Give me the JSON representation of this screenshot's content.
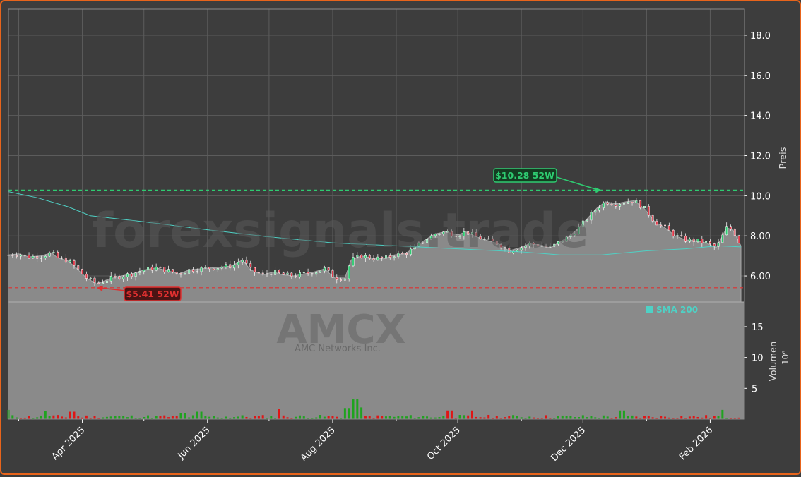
{
  "chart_data": {
    "type": "candlestick",
    "ticker": "AMCX",
    "company": "AMC Networks Inc.",
    "watermark": "forexsignals.trade",
    "x_ticks": [
      "Apr 2025",
      "Jun 2025",
      "Aug 2025",
      "Oct 2025",
      "Dec 2025",
      "Feb 2026"
    ],
    "price_axis": {
      "label": "Preis",
      "ticks": [
        "6.00",
        "8.00",
        "10.0",
        "12.0",
        "14.0",
        "16.0",
        "18.0"
      ],
      "ylim": [
        4.7,
        19.3
      ]
    },
    "volume_axis": {
      "label": "Volumen",
      "unit": "10⁶",
      "ticks": [
        "5",
        "10",
        "15"
      ],
      "ylim": [
        0,
        19
      ]
    },
    "high_52w": {
      "value": 10.28,
      "label": "$10.28 52W",
      "date": "2025-12-10",
      "color": "#2ecc71"
    },
    "low_52w": {
      "value": 5.41,
      "label": "$5.41 52W",
      "date": "2025-04-08",
      "color": "#e03030"
    },
    "legend": {
      "sma": "SMA 200",
      "sma_color": "#4fd1c5"
    },
    "series_close": [
      [
        "2025-02-24",
        7.05
      ],
      [
        "2025-03-01",
        7.1
      ],
      [
        "2025-03-06",
        6.95
      ],
      [
        "2025-03-12",
        7.0
      ],
      [
        "2025-03-17",
        7.15
      ],
      [
        "2025-03-20",
        6.9
      ],
      [
        "2025-03-25",
        6.75
      ],
      [
        "2025-03-29",
        6.4
      ],
      [
        "2025-04-03",
        5.9
      ],
      [
        "2025-04-08",
        5.6
      ],
      [
        "2025-04-14",
        5.85
      ],
      [
        "2025-04-20",
        6.0
      ],
      [
        "2025-04-25",
        6.1
      ],
      [
        "2025-05-01",
        6.3
      ],
      [
        "2025-05-07",
        6.4
      ],
      [
        "2025-05-13",
        6.25
      ],
      [
        "2025-05-18",
        6.1
      ],
      [
        "2025-05-23",
        6.3
      ],
      [
        "2025-05-28",
        6.35
      ],
      [
        "2025-06-03",
        6.4
      ],
      [
        "2025-06-08",
        6.45
      ],
      [
        "2025-06-13",
        6.5
      ],
      [
        "2025-06-18",
        6.8
      ],
      [
        "2025-06-22",
        6.3
      ],
      [
        "2025-06-28",
        6.05
      ],
      [
        "2025-07-03",
        6.2
      ],
      [
        "2025-07-08",
        6.05
      ],
      [
        "2025-07-13",
        6.0
      ],
      [
        "2025-07-18",
        6.1
      ],
      [
        "2025-07-23",
        6.2
      ],
      [
        "2025-07-28",
        6.35
      ],
      [
        "2025-08-02",
        5.9
      ],
      [
        "2025-08-07",
        5.9
      ],
      [
        "2025-08-10",
        6.8
      ],
      [
        "2025-08-15",
        7.0
      ],
      [
        "2025-08-20",
        6.9
      ],
      [
        "2025-08-26",
        6.85
      ],
      [
        "2025-08-31",
        7.05
      ],
      [
        "2025-09-05",
        7.1
      ],
      [
        "2025-09-10",
        7.4
      ],
      [
        "2025-09-15",
        7.8
      ],
      [
        "2025-09-20",
        8.1
      ],
      [
        "2025-09-25",
        8.2
      ],
      [
        "2025-10-01",
        8.05
      ],
      [
        "2025-10-05",
        8.2
      ],
      [
        "2025-10-10",
        7.95
      ],
      [
        "2025-10-16",
        7.75
      ],
      [
        "2025-10-21",
        7.6
      ],
      [
        "2025-10-26",
        7.25
      ],
      [
        "2025-10-31",
        7.4
      ],
      [
        "2025-11-05",
        7.6
      ],
      [
        "2025-11-10",
        7.55
      ],
      [
        "2025-11-15",
        7.4
      ],
      [
        "2025-11-19",
        7.65
      ],
      [
        "2025-11-24",
        7.95
      ],
      [
        "2025-11-28",
        8.3
      ],
      [
        "2025-12-03",
        8.85
      ],
      [
        "2025-12-08",
        9.4
      ],
      [
        "2025-12-12",
        9.7
      ],
      [
        "2025-12-17",
        9.6
      ],
      [
        "2025-12-22",
        9.7
      ],
      [
        "2025-12-26",
        9.75
      ],
      [
        "2025-12-31",
        9.35
      ],
      [
        "2026-01-05",
        8.7
      ],
      [
        "2026-01-10",
        8.4
      ],
      [
        "2026-01-15",
        8.0
      ],
      [
        "2026-01-20",
        7.8
      ],
      [
        "2026-01-25",
        7.75
      ],
      [
        "2026-01-30",
        7.65
      ],
      [
        "2026-02-04",
        7.4
      ],
      [
        "2026-02-09",
        8.4
      ],
      [
        "2026-02-12",
        8.3
      ],
      [
        "2026-02-16",
        7.5
      ]
    ],
    "sma200": [
      [
        "2025-02-24",
        10.2
      ],
      [
        "2025-03-10",
        9.9
      ],
      [
        "2025-03-25",
        9.45
      ],
      [
        "2025-04-05",
        9.0
      ],
      [
        "2025-05-01",
        8.7
      ],
      [
        "2025-06-01",
        8.3
      ],
      [
        "2025-07-01",
        7.95
      ],
      [
        "2025-08-01",
        7.65
      ],
      [
        "2025-09-01",
        7.5
      ],
      [
        "2025-10-01",
        7.35
      ],
      [
        "2025-11-01",
        7.2
      ],
      [
        "2025-11-20",
        7.05
      ],
      [
        "2025-12-10",
        7.05
      ],
      [
        "2026-01-01",
        7.25
      ],
      [
        "2026-01-20",
        7.35
      ],
      [
        "2026-02-05",
        7.5
      ],
      [
        "2026-02-16",
        7.45
      ]
    ],
    "volume_spikes_millions": [
      [
        "2025-02-24",
        1.5
      ],
      [
        "2025-03-14",
        1.3
      ],
      [
        "2025-03-27",
        1.2
      ],
      [
        "2025-05-20",
        1.0
      ],
      [
        "2025-05-28",
        1.2
      ],
      [
        "2025-07-06",
        1.6
      ],
      [
        "2025-08-08",
        1.8
      ],
      [
        "2025-08-12",
        3.2
      ],
      [
        "2025-08-15",
        1.9
      ],
      [
        "2025-09-27",
        1.4
      ],
      [
        "2025-10-08",
        1.4
      ],
      [
        "2025-12-20",
        1.4
      ],
      [
        "2026-02-07",
        1.5
      ]
    ]
  }
}
